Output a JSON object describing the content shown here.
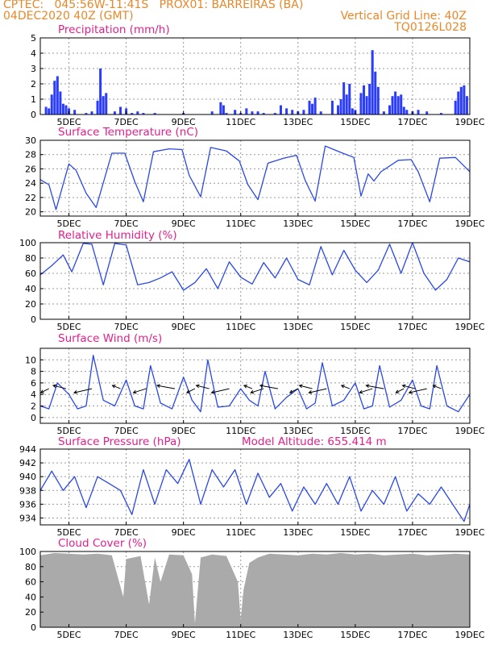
{
  "header": {
    "line1_left": "CPTEC:   045:56W-11:41S   PROX01: BARREIRAS (BA)",
    "line2_left": "04DEC2020 40Z (GMT)",
    "line2_right": "Vertical Grid Line: 40Z",
    "line3_right": "TQ0126L028"
  },
  "chart_data": [
    {
      "type": "bar",
      "title": "Precipitation (mm/h)",
      "xlabel": "",
      "ylabel": "",
      "x_ticks": [
        "5DEC",
        "7DEC",
        "9DEC",
        "11DEC",
        "13DEC",
        "15DEC",
        "17DEC",
        "19DEC"
      ],
      "ylim": [
        0,
        5
      ],
      "y_ticks": [
        0,
        1,
        2,
        3,
        4,
        5
      ],
      "grid": true,
      "x": [
        4.2,
        4.3,
        4.4,
        4.5,
        4.6,
        4.7,
        4.8,
        4.9,
        5.0,
        5.2,
        5.6,
        5.8,
        6.0,
        6.1,
        6.2,
        6.3,
        6.6,
        6.8,
        7.0,
        7.2,
        7.4,
        7.6,
        8.0,
        9.0,
        10.0,
        10.3,
        10.4,
        10.5,
        10.8,
        11.0,
        11.2,
        11.4,
        11.6,
        11.8,
        12.2,
        12.4,
        12.6,
        12.8,
        13.0,
        13.2,
        13.4,
        13.5,
        13.6,
        13.8,
        14.2,
        14.4,
        14.5,
        14.6,
        14.7,
        14.8,
        14.9,
        15.0,
        15.2,
        15.3,
        15.4,
        15.5,
        15.6,
        15.7,
        15.8,
        16.0,
        16.2,
        16.3,
        16.4,
        16.5,
        16.6,
        16.7,
        16.8,
        17.0,
        17.2,
        17.5,
        18.0,
        18.5,
        18.6,
        18.7,
        18.8,
        18.9
      ],
      "values": [
        0.5,
        0.4,
        1.3,
        2.2,
        2.5,
        1.5,
        0.7,
        0.6,
        0.4,
        0.3,
        0.1,
        0.2,
        0.9,
        3.0,
        1.2,
        1.4,
        0.2,
        0.5,
        0.4,
        0.1,
        0.2,
        0.1,
        0.1,
        0.1,
        0.2,
        0.8,
        0.6,
        0.1,
        0.3,
        0.1,
        0.4,
        0.2,
        0.2,
        0.1,
        0.1,
        0.6,
        0.4,
        0.3,
        0.2,
        0.3,
        0.9,
        0.7,
        1.1,
        0.2,
        0.9,
        0.6,
        1.0,
        2.1,
        1.3,
        2.0,
        0.4,
        0.3,
        1.4,
        1.9,
        1.2,
        2.0,
        4.2,
        2.8,
        1.8,
        0.2,
        0.6,
        1.2,
        1.5,
        1.2,
        1.3,
        0.5,
        0.3,
        0.2,
        0.3,
        0.2,
        0.1,
        0.9,
        1.5,
        1.8,
        1.9,
        1.2
      ]
    },
    {
      "type": "line",
      "title": "Surface Temperature (nC)",
      "xlabel": "",
      "ylabel": "",
      "x_ticks": [
        "5DEC",
        "7DEC",
        "9DEC",
        "11DEC",
        "13DEC",
        "15DEC",
        "17DEC",
        "19DEC"
      ],
      "ylim": [
        19.4,
        30
      ],
      "y_ticks": [
        20,
        22,
        24,
        26,
        28,
        30
      ],
      "grid": true,
      "x": [
        4.0,
        4.3,
        4.55,
        5.0,
        5.25,
        5.6,
        5.95,
        6.5,
        6.95,
        7.3,
        7.6,
        7.95,
        8.5,
        8.95,
        9.2,
        9.6,
        9.95,
        10.5,
        10.95,
        11.25,
        11.6,
        11.95,
        12.5,
        12.95,
        13.25,
        13.6,
        13.95,
        14.5,
        14.95,
        15.2,
        15.45,
        15.65,
        15.9,
        16.5,
        16.95,
        17.2,
        17.6,
        17.95,
        18.5,
        18.95,
        19.0
      ],
      "values": [
        24.5,
        23.8,
        20.3,
        26.7,
        25.8,
        22.6,
        20.6,
        28.2,
        28.2,
        24.2,
        21.4,
        28.4,
        28.8,
        28.7,
        25.1,
        22.1,
        29.0,
        28.5,
        27.1,
        23.8,
        21.7,
        26.8,
        27.5,
        27.9,
        24.4,
        21.5,
        29.2,
        28.3,
        27.6,
        22.2,
        25.3,
        24.3,
        25.6,
        27.2,
        27.3,
        25.6,
        21.4,
        27.5,
        27.6,
        25.8,
        25.6
      ]
    },
    {
      "type": "line",
      "title": "Relative Humidity (%)",
      "xlabel": "",
      "ylabel": "",
      "x_ticks": [
        "5DEC",
        "7DEC",
        "9DEC",
        "11DEC",
        "13DEC",
        "15DEC",
        "17DEC",
        "19DEC"
      ],
      "ylim": [
        0,
        100
      ],
      "y_ticks": [
        0,
        20,
        40,
        60,
        80,
        100
      ],
      "grid": true,
      "x": [
        4.0,
        4.4,
        4.8,
        5.1,
        5.5,
        5.8,
        6.2,
        6.6,
        7.0,
        7.4,
        7.8,
        8.2,
        8.6,
        9.0,
        9.4,
        9.8,
        10.2,
        10.6,
        11.0,
        11.4,
        11.8,
        12.2,
        12.6,
        13.0,
        13.4,
        13.8,
        14.2,
        14.6,
        15.0,
        15.4,
        15.8,
        16.2,
        16.6,
        17.0,
        17.4,
        17.8,
        18.2,
        18.6,
        19.0
      ],
      "values": [
        58,
        70,
        84,
        62,
        99,
        98,
        45,
        99,
        97,
        45,
        48,
        54,
        62,
        38,
        48,
        66,
        40,
        75,
        55,
        46,
        74,
        54,
        80,
        52,
        45,
        95,
        58,
        90,
        64,
        48,
        64,
        98,
        60,
        100,
        60,
        38,
        52,
        80,
        75
      ]
    },
    {
      "type": "line",
      "title": "Surface Wind (m/s)",
      "xlabel": "",
      "ylabel": "",
      "x_ticks": [
        "5DEC",
        "7DEC",
        "9DEC",
        "11DEC",
        "13DEC",
        "15DEC",
        "17DEC",
        "19DEC"
      ],
      "ylim": [
        -1,
        12
      ],
      "y_ticks": [
        0,
        2,
        4,
        6,
        8,
        10
      ],
      "grid": true,
      "x": [
        4.0,
        4.3,
        4.6,
        5.0,
        5.3,
        5.6,
        5.85,
        6.2,
        6.6,
        7.0,
        7.3,
        7.6,
        7.85,
        8.2,
        8.6,
        9.0,
        9.3,
        9.6,
        9.85,
        10.2,
        10.6,
        11.0,
        11.3,
        11.6,
        11.85,
        12.2,
        12.6,
        13.0,
        13.3,
        13.6,
        13.85,
        14.2,
        14.6,
        15.0,
        15.3,
        15.6,
        15.85,
        16.2,
        16.6,
        17.0,
        17.3,
        17.6,
        17.85,
        18.2,
        18.6,
        19.0
      ],
      "values": [
        2,
        1.5,
        6,
        4,
        1.5,
        2,
        10.8,
        3,
        2,
        6.5,
        2,
        1.5,
        9,
        2.5,
        1.5,
        7,
        3,
        1,
        10,
        1.8,
        2,
        5,
        3,
        2,
        8,
        1.5,
        3.5,
        5,
        1.5,
        2.5,
        9.5,
        2,
        3,
        6,
        1.5,
        2,
        9,
        1.8,
        3,
        6.5,
        2,
        1.5,
        9,
        2,
        1,
        4
      ],
      "arrows_x": [
        4.3,
        4.9,
        5.8,
        6.8,
        7.7,
        8.7,
        9.4,
        9.9,
        10.6,
        11.4,
        11.8,
        12.3,
        13.0,
        13.5,
        14.0,
        14.8,
        15.6,
        16.0,
        16.7,
        17.1,
        17.5,
        18.0
      ]
    },
    {
      "type": "line",
      "title": "Surface Pressure (hPa)",
      "annotation": "Model Altitude: 655.414 m",
      "xlabel": "",
      "ylabel": "",
      "x_ticks": [
        "5DEC",
        "7DEC",
        "9DEC",
        "11DEC",
        "13DEC",
        "15DEC",
        "17DEC",
        "19DEC"
      ],
      "ylim": [
        933,
        944
      ],
      "y_ticks": [
        934,
        936,
        938,
        940,
        942,
        944
      ],
      "grid": true,
      "x": [
        4.0,
        4.4,
        4.8,
        5.2,
        5.6,
        6.0,
        6.4,
        6.8,
        7.2,
        7.6,
        8.0,
        8.4,
        8.8,
        9.2,
        9.6,
        10.0,
        10.4,
        10.8,
        11.2,
        11.6,
        12.0,
        12.4,
        12.8,
        13.2,
        13.6,
        14.0,
        14.4,
        14.8,
        15.2,
        15.6,
        16.0,
        16.4,
        16.8,
        17.2,
        17.6,
        18.0,
        18.4,
        18.8,
        19.0
      ],
      "values": [
        938,
        940.8,
        938,
        940,
        935.5,
        940,
        939,
        938,
        934.5,
        941,
        936,
        941,
        939,
        942.5,
        936,
        941,
        938.5,
        941,
        936,
        940.5,
        937,
        939,
        935,
        938.5,
        936,
        939,
        936,
        940,
        935,
        938,
        936,
        940,
        935,
        937.5,
        936,
        938.5,
        936,
        933.5,
        936
      ]
    },
    {
      "type": "area",
      "title": "Cloud Cover (%)",
      "xlabel": "",
      "ylabel": "",
      "x_ticks": [
        "5DEC",
        "7DEC",
        "9DEC",
        "11DEC",
        "13DEC",
        "15DEC",
        "17DEC",
        "19DEC"
      ],
      "ylim": [
        0,
        100
      ],
      "y_ticks": [
        0,
        20,
        40,
        60,
        80,
        100
      ],
      "grid": true,
      "x": [
        4.0,
        4.5,
        5.0,
        5.5,
        6.0,
        6.5,
        6.9,
        7.0,
        7.5,
        7.8,
        8.0,
        8.2,
        8.5,
        9.0,
        9.3,
        9.4,
        9.6,
        10.0,
        10.5,
        10.9,
        11.0,
        11.1,
        11.3,
        11.6,
        12.0,
        12.5,
        13.0,
        13.5,
        14.0,
        14.5,
        15.0,
        15.5,
        16.0,
        16.5,
        17.0,
        17.5,
        18.0,
        18.5,
        19.0
      ],
      "values": [
        95,
        98,
        97,
        96,
        97,
        95,
        40,
        90,
        94,
        30,
        92,
        60,
        96,
        95,
        70,
        5,
        92,
        96,
        94,
        60,
        10,
        50,
        85,
        92,
        97,
        96,
        95,
        97,
        96,
        98,
        96,
        97,
        95,
        96,
        97,
        95,
        96,
        97,
        96
      ]
    }
  ]
}
